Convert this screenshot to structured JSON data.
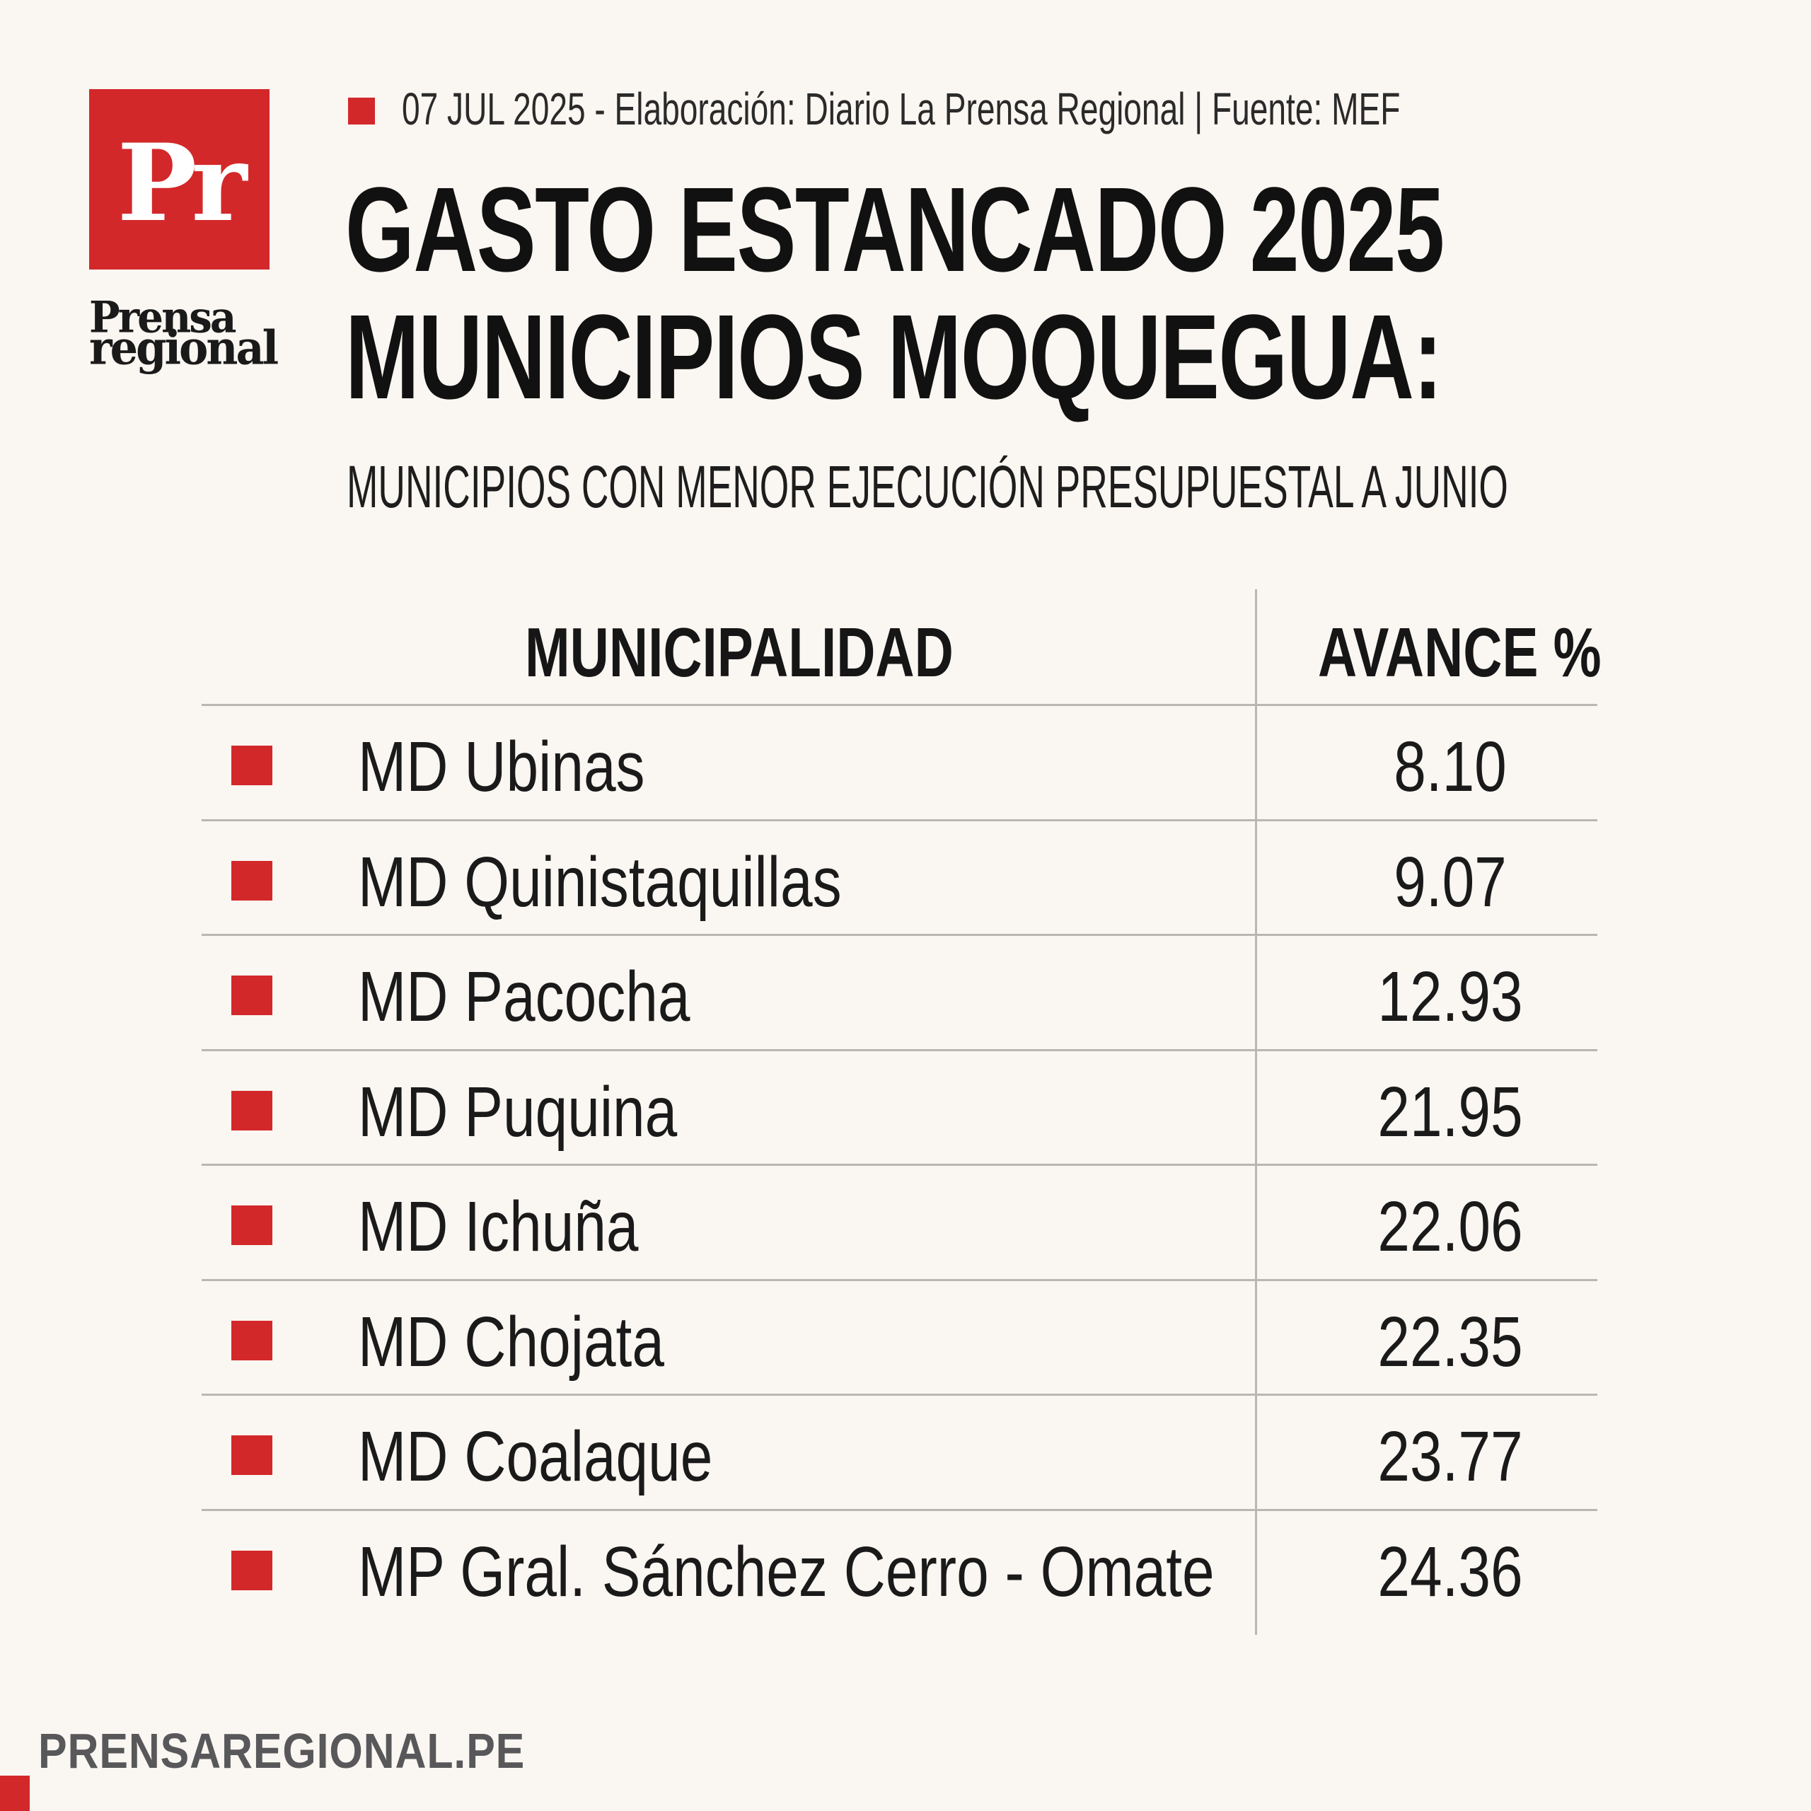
{
  "brand": {
    "logo_letters": "Pr",
    "logo_word_1": "Prensa",
    "logo_word_2": "regional",
    "accent_color": "#d3282a"
  },
  "header": {
    "meta": "07 JUL 2025 -  Elaboración: Diario La Prensa Regional | Fuente: MEF",
    "title_line_1": "GASTO ESTANCADO 2025",
    "title_line_2": "MUNICIPIOS MOQUEGUA:",
    "subtitle": "MUNICIPIOS CON MENOR EJECUCIÓN PRESUPUESTAL A JUNIO"
  },
  "chart_data": {
    "type": "table",
    "columns": [
      "MUNICIPALIDAD",
      "AVANCE %"
    ],
    "rows": [
      {
        "municipalidad": "MD Ubinas",
        "avance": "8.10"
      },
      {
        "municipalidad": "MD Quinistaquillas",
        "avance": "9.07"
      },
      {
        "municipalidad": "MD Pacocha",
        "avance": "12.93"
      },
      {
        "municipalidad": "MD Puquina",
        "avance": "21.95"
      },
      {
        "municipalidad": "MD Ichuña",
        "avance": "22.06"
      },
      {
        "municipalidad": "MD Chojata",
        "avance": "22.35"
      },
      {
        "municipalidad": "MD Coalaque",
        "avance": "23.77"
      },
      {
        "municipalidad": "MP Gral. Sánchez Cerro - Omate",
        "avance": "24.36"
      }
    ]
  },
  "footer": {
    "url": "PRENSAREGIONAL.PE"
  }
}
